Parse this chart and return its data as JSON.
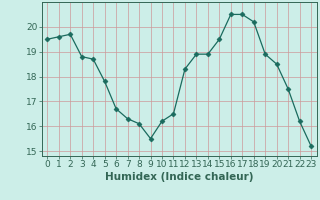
{
  "x": [
    0,
    1,
    2,
    3,
    4,
    5,
    6,
    7,
    8,
    9,
    10,
    11,
    12,
    13,
    14,
    15,
    16,
    17,
    18,
    19,
    20,
    21,
    22,
    23
  ],
  "y": [
    19.5,
    19.6,
    19.7,
    18.8,
    18.7,
    17.8,
    16.7,
    16.3,
    16.1,
    15.5,
    16.2,
    16.5,
    18.3,
    18.9,
    18.9,
    19.5,
    20.5,
    20.5,
    20.2,
    18.9,
    18.5,
    17.5,
    16.2,
    15.2
  ],
  "line_color": "#1a6b5e",
  "marker": "D",
  "marker_size": 2.5,
  "bg_color": "#cceee8",
  "grid_color": "#cc9999",
  "xlabel": "Humidex (Indice chaleur)",
  "xlim": [
    -0.5,
    23.5
  ],
  "ylim": [
    14.8,
    21.0
  ],
  "yticks": [
    15,
    16,
    17,
    18,
    19,
    20
  ],
  "xticks": [
    0,
    1,
    2,
    3,
    4,
    5,
    6,
    7,
    8,
    9,
    10,
    11,
    12,
    13,
    14,
    15,
    16,
    17,
    18,
    19,
    20,
    21,
    22,
    23
  ],
  "tick_fontsize": 6.5,
  "label_fontsize": 7.5,
  "tick_color": "#336655",
  "spine_color": "#336655"
}
